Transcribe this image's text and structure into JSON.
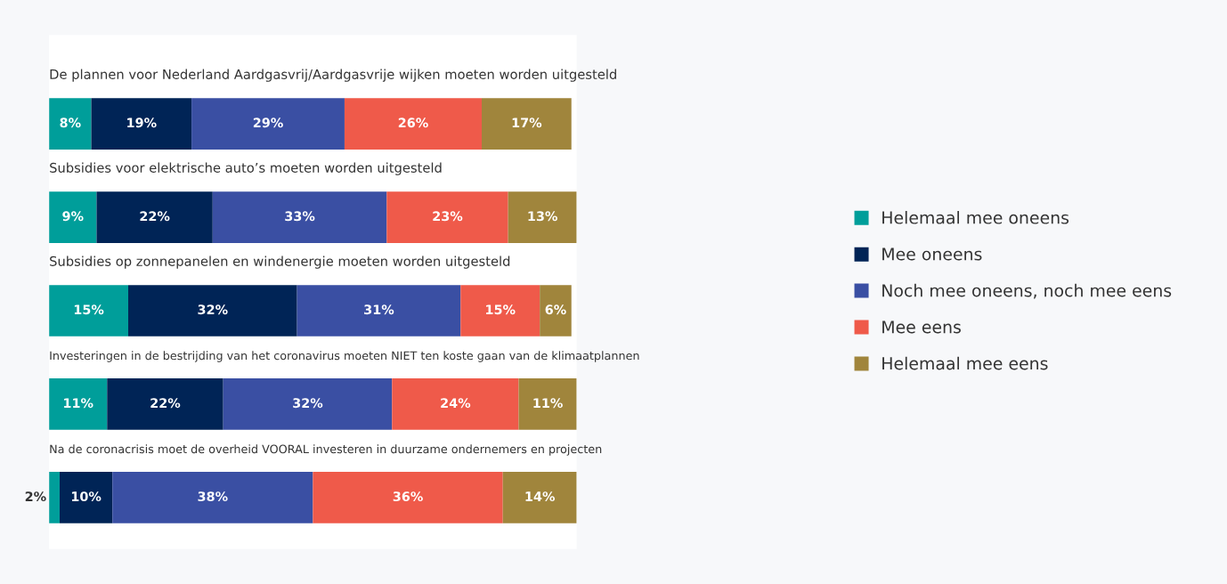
{
  "chart_data": {
    "type": "bar",
    "orientation": "horizontal",
    "stacked": true,
    "legend": "right",
    "categories": [
      "De plannen voor Nederland Aardgasvrij/Aardgasvrije wijken moeten worden uitgesteld",
      "Subsidies voor elektrische auto’s moeten worden uitgesteld",
      "Subsidies op zonnepanelen en windenergie moeten worden uitgesteld",
      "Investeringen in de bestrijding van het coronavirus moeten NIET ten koste gaan van de klimaatplannen",
      "Na de coronacrisis moet de overheid VOORAL investeren in duurzame ondernemers en projecten"
    ],
    "series": [
      {
        "name": "Helemaal mee oneens",
        "color": "#009e9a",
        "values": [
          8,
          9,
          15,
          11,
          2
        ],
        "value_labels": [
          "8%",
          "9%",
          "15%",
          "11%",
          "2%"
        ]
      },
      {
        "name": "Mee oneens",
        "color": "#002456",
        "values": [
          19,
          22,
          32,
          22,
          10
        ],
        "value_labels": [
          "19%",
          "22%",
          "32%",
          "22%",
          "10%"
        ]
      },
      {
        "name": "Noch mee oneens, noch mee eens",
        "color": "#3a4fa3",
        "values": [
          29,
          33,
          31,
          32,
          38
        ],
        "value_labels": [
          "29%",
          "33%",
          "31%",
          "32%",
          "38%"
        ]
      },
      {
        "name": "Mee eens",
        "color": "#ef5a4a",
        "values": [
          26,
          23,
          15,
          24,
          36
        ],
        "value_labels": [
          "26%",
          "23%",
          "15%",
          "24%",
          "36%"
        ]
      },
      {
        "name": "Helemaal mee eens",
        "color": "#a0853c",
        "values": [
          17,
          13,
          6,
          11,
          14
        ],
        "value_labels": [
          "17%",
          "13%",
          "6%",
          "11%",
          "14%"
        ]
      }
    ]
  }
}
